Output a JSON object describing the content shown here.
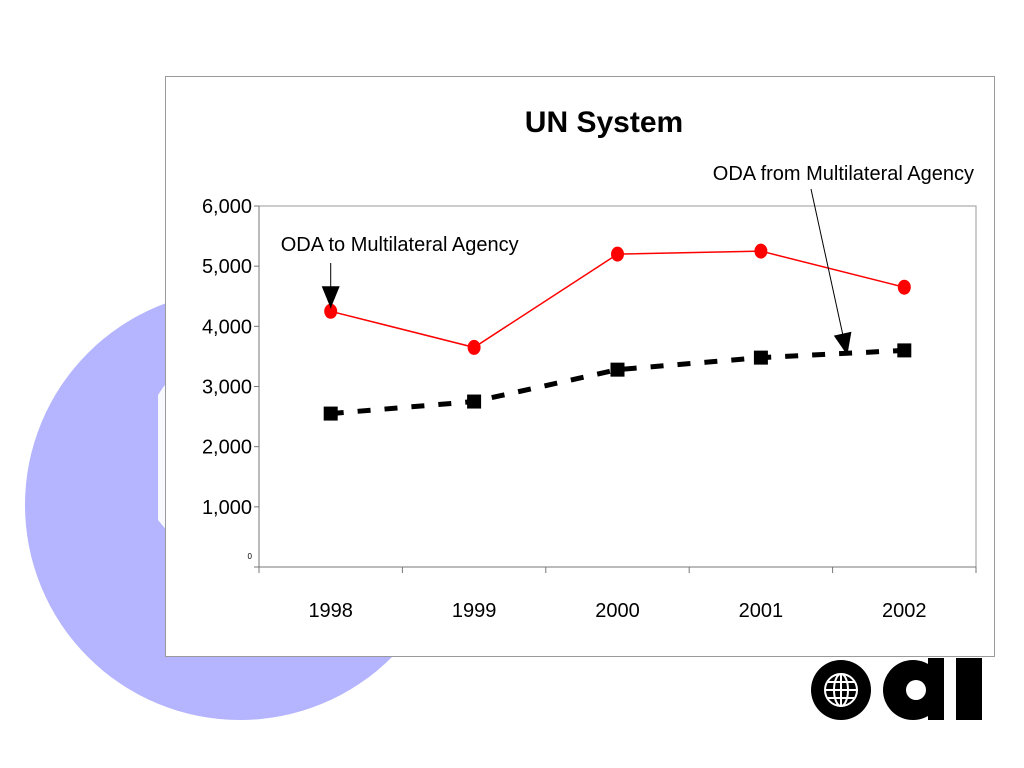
{
  "chart_data": {
    "type": "line",
    "title": "UN System",
    "xlabel": "",
    "ylabel": "",
    "categories": [
      "1998",
      "1999",
      "2000",
      "2001",
      "2002"
    ],
    "ylim": [
      0,
      6000
    ],
    "y_ticks": [
      "0",
      "1,000",
      "2,000",
      "3,000",
      "4,000",
      "5,000",
      "6,000"
    ],
    "grid": false,
    "legend": "none",
    "series": [
      {
        "values": [
          4250,
          3650,
          5200,
          5250,
          4650
        ],
        "color": "#ff0000",
        "marker": "circle",
        "line_style": "solid"
      },
      {
        "values": [
          2550,
          2750,
          3280,
          3480,
          3600
        ],
        "color": "#000000",
        "marker": "square",
        "line_style": "dashed"
      }
    ],
    "annotations": [
      {
        "text": "ODA to Multilateral Agency",
        "points_to": {
          "series": 0,
          "category": "1998"
        }
      },
      {
        "text": "ODA from Multilateral Agency",
        "points_to": {
          "series": 1,
          "category": "2002"
        }
      }
    ]
  },
  "decor": {
    "background_circle_color": "#b4b4ff",
    "logo_text": "oal",
    "logo_icon": "globe-icon"
  }
}
